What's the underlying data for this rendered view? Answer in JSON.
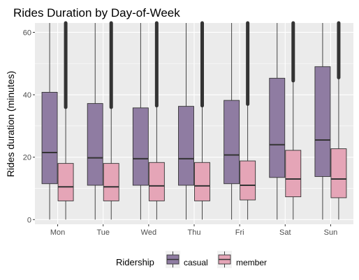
{
  "chart_data": {
    "type": "boxplot",
    "title": "Rides Duration by Day-of-Week",
    "xlabel": "",
    "ylabel": "Rides duration (minutes)",
    "ylim": [
      -1.5,
      63
    ],
    "yticks": [
      0,
      20,
      40,
      60
    ],
    "categories": [
      "Mon",
      "Tue",
      "Wed",
      "Thu",
      "Fri",
      "Sat",
      "Sun"
    ],
    "grid": "on",
    "panel_background": "#ebebeb",
    "legend": {
      "title": "Ridership",
      "placement": "bottom"
    },
    "outlier_color": "#333333",
    "series": [
      {
        "name": "casual",
        "color": "#8f7ca2",
        "stats": [
          {
            "q1": 11.5,
            "median": 21.5,
            "q3": 40.8,
            "whisker_low": 0,
            "whisker_high": 63,
            "outliers_from": null
          },
          {
            "q1": 11.0,
            "median": 19.8,
            "q3": 37.2,
            "whisker_low": 0,
            "whisker_high": 63,
            "outliers_from": null
          },
          {
            "q1": 11.0,
            "median": 19.5,
            "q3": 35.8,
            "whisker_low": 0,
            "whisker_high": 63,
            "outliers_from": null
          },
          {
            "q1": 11.0,
            "median": 19.5,
            "q3": 36.3,
            "whisker_low": 0,
            "whisker_high": 63,
            "outliers_from": null
          },
          {
            "q1": 11.5,
            "median": 20.7,
            "q3": 38.2,
            "whisker_low": 0,
            "whisker_high": 63,
            "outliers_from": null
          },
          {
            "q1": 13.5,
            "median": 24.0,
            "q3": 45.3,
            "whisker_low": 0,
            "whisker_high": 63,
            "outliers_from": null
          },
          {
            "q1": 13.8,
            "median": 25.5,
            "q3": 49.0,
            "whisker_low": 0,
            "whisker_high": 63,
            "outliers_from": null
          }
        ]
      },
      {
        "name": "member",
        "color": "#e5a5b7",
        "stats": [
          {
            "q1": 6.0,
            "median": 10.5,
            "q3": 18.0,
            "whisker_low": 0,
            "whisker_high": 36.0,
            "outliers_from": 36.0
          },
          {
            "q1": 6.0,
            "median": 10.5,
            "q3": 18.0,
            "whisker_low": 0,
            "whisker_high": 36.0,
            "outliers_from": 36.0
          },
          {
            "q1": 6.0,
            "median": 10.8,
            "q3": 18.3,
            "whisker_low": 0,
            "whisker_high": 36.5,
            "outliers_from": 36.5
          },
          {
            "q1": 6.0,
            "median": 10.8,
            "q3": 18.3,
            "whisker_low": 0,
            "whisker_high": 36.5,
            "outliers_from": 36.5
          },
          {
            "q1": 6.3,
            "median": 11.0,
            "q3": 18.8,
            "whisker_low": 0,
            "whisker_high": 37.0,
            "outliers_from": 37.0
          },
          {
            "q1": 7.3,
            "median": 13.0,
            "q3": 22.2,
            "whisker_low": 0,
            "whisker_high": 44.5,
            "outliers_from": 44.5
          },
          {
            "q1": 7.0,
            "median": 13.0,
            "q3": 22.7,
            "whisker_low": 0,
            "whisker_high": 45.5,
            "outliers_from": 45.5
          }
        ]
      }
    ]
  }
}
